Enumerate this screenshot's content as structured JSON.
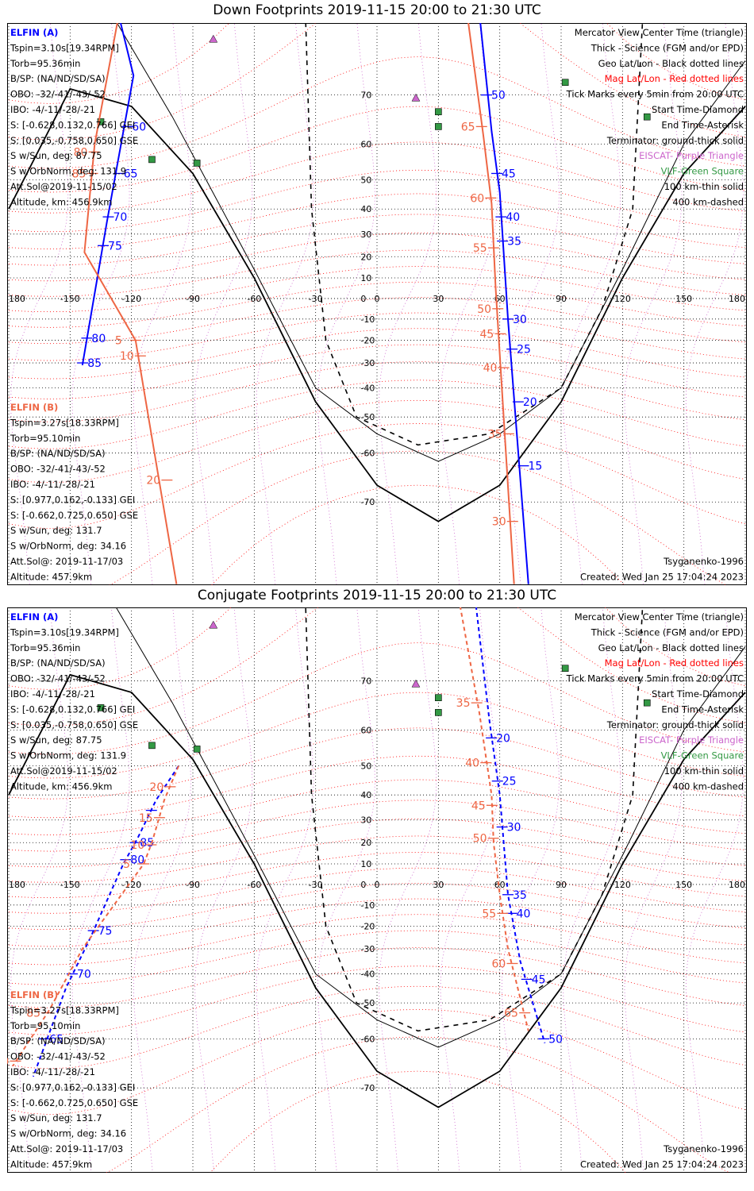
{
  "chart_data": [
    {
      "type": "map",
      "title": "Down Footprints 2019-11-15 20:00 to 21:30 UTC",
      "projection": "Mercator",
      "xlim": [
        -180,
        180
      ],
      "ylim": [
        -80,
        80
      ],
      "lon_ticks": [
        "180",
        "-150",
        "-120",
        "-90",
        "-60",
        "-30",
        "0",
        "30",
        "60",
        "90",
        "120",
        "150",
        "180"
      ],
      "lat_ticks": [
        "70",
        "60",
        "50",
        "40",
        "30",
        "20",
        "10",
        "0",
        "-10",
        "-20",
        "-30",
        "-40",
        "-50",
        "-60",
        "-70"
      ],
      "left_a": [
        "ELFIN (A)",
        "Tspin=3.10s[19.34RPM]",
        "Torb=95.36min",
        "B/SP: (NA/ND/SD/SA)",
        "OBO: -32/-41/-43/-52",
        "IBO: -4/-11/-28/-21",
        "S: [-0.628,0.132,0.766] GEI",
        "S: [0.035,-0.758,0.650] GSE",
        "S w/Sun, deg: 87.75",
        "S w/OrbNorm, deg: 131.9",
        "Att.Sol@2019-11-15/02",
        "Altitude, km: 456.9km"
      ],
      "left_b": [
        "ELFIN (B)",
        "Tspin=3.27s[18.33RPM]",
        "Torb=95.10min",
        "B/SP: (NA/ND/SD/SA)",
        "OBO: -32/-41/-43/-52",
        "IBO: -4/-11/-28/-21",
        "S: [0.977,0.162,-0.133] GEI",
        "S: [-0.662,0.725,0.650] GSE",
        "S w/Sun, deg: 131.7",
        "S w/OrbNorm, deg: 34.16",
        "Att.Sol@: 2019-11-17/03",
        "Altitude: 457.9km"
      ],
      "legend": [
        "Mercator View Center Time (triangle)",
        "Thick - Science (FGM and/or EPD)",
        "Geo Lat/Lon - Black dotted lines",
        "Mag Lat/Lon - Red dotted lines",
        "Tick Marks every 5min from 20:00 UTC",
        "Start Time-Diamond",
        "End Time-Asterisk",
        "Terminator: ground-thick solid",
        "EISCAT- Purple Triangle",
        "VLF-Green Square",
        "100 km-thin solid",
        "400 km-dashed"
      ],
      "footer_left": "",
      "footer_right": [
        "Tsyganenko-1996",
        "Created: Wed Jan 25 17:04:24 2023"
      ],
      "series": [
        {
          "name": "ELFIN (A)",
          "color": "#0000ff",
          "style": "solid",
          "points": [
            [
              -128,
              81
            ],
            [
              -119,
              73
            ],
            [
              -132,
              35
            ],
            [
              -144,
              -31
            ]
          ],
          "ticks": [
            {
              "lat": 64,
              "label": "60"
            },
            {
              "lat": 52,
              "label": "65"
            },
            {
              "lat": 37,
              "label": "70"
            },
            {
              "lat": 25,
              "label": "75"
            },
            {
              "lat": -19,
              "label": "80"
            },
            {
              "lat": -30,
              "label": "85"
            }
          ]
        },
        {
          "name": "ELFIN (B)",
          "color": "#ee6644",
          "style": "solid",
          "points": [
            [
              -126,
              80
            ],
            [
              -138,
              60
            ],
            [
              -143,
              22
            ],
            [
              -118,
              -20
            ],
            [
              -98,
              -80
            ]
          ],
          "ticks": [
            {
              "lat": 58,
              "label": "80"
            },
            {
              "lat": 52,
              "label": "85"
            },
            {
              "lat": -20,
              "label": "5"
            },
            {
              "lat": -27,
              "label": "10"
            },
            {
              "lat": -66,
              "label": "20"
            }
          ]
        },
        {
          "name": "ELFIN (A)",
          "color": "#0000ff",
          "style": "solid",
          "points": [
            [
              50,
              80
            ],
            [
              56,
              63
            ],
            [
              60,
              46
            ],
            [
              64,
              -10
            ],
            [
              74,
              -80
            ]
          ],
          "ticks": [
            {
              "lat": 70,
              "label": "50"
            },
            {
              "lat": 52,
              "label": "45"
            },
            {
              "lat": 37,
              "label": "40"
            },
            {
              "lat": 27,
              "label": "35"
            },
            {
              "lat": -10,
              "label": "30"
            },
            {
              "lat": -24,
              "label": "25"
            },
            {
              "lat": -45,
              "label": "20"
            },
            {
              "lat": -63,
              "label": "15"
            }
          ]
        },
        {
          "name": "ELFIN (B)",
          "color": "#ee6644",
          "style": "solid",
          "points": [
            [
              44,
              80
            ],
            [
              52,
              62
            ],
            [
              56,
              42
            ],
            [
              58,
              5
            ],
            [
              67,
              -80
            ]
          ],
          "ticks": [
            {
              "lat": 64,
              "label": "65"
            },
            {
              "lat": 44,
              "label": "60"
            },
            {
              "lat": 24,
              "label": "55"
            },
            {
              "lat": -5,
              "label": "50"
            },
            {
              "lat": -17,
              "label": "45"
            },
            {
              "lat": -32,
              "label": "40"
            },
            {
              "lat": -55,
              "label": "35"
            },
            {
              "lat": -73,
              "label": "30"
            }
          ]
        }
      ],
      "terminators": [
        {
          "style": "thick",
          "points": [
            [
              -180,
              40
            ],
            [
              -150,
              71
            ],
            [
              -120,
              68
            ],
            [
              -90,
              52
            ],
            [
              -60,
              10
            ],
            [
              -30,
              -45
            ],
            [
              0,
              -67
            ],
            [
              30,
              -73
            ],
            [
              60,
              -67
            ],
            [
              90,
              -45
            ],
            [
              120,
              10
            ],
            [
              150,
              52
            ],
            [
              180,
              68
            ]
          ]
        },
        {
          "style": "thin",
          "points": [
            [
              -130,
              80
            ],
            [
              -100,
              66
            ],
            [
              -60,
              14
            ],
            [
              -30,
              -40
            ],
            [
              0,
              -55
            ],
            [
              30,
              -62
            ],
            [
              60,
              -55
            ],
            [
              90,
              -40
            ],
            [
              120,
              14
            ],
            [
              150,
              60
            ],
            [
              180,
              75
            ]
          ]
        },
        {
          "style": "dashed",
          "points": [
            [
              -35,
              80
            ],
            [
              -32,
              40
            ],
            [
              -25,
              -20
            ],
            [
              -10,
              -50
            ],
            [
              20,
              -58
            ],
            [
              55,
              -55
            ],
            [
              90,
              -40
            ],
            [
              110,
              -5
            ],
            [
              125,
              40
            ],
            [
              130,
              80
            ]
          ]
        }
      ]
    },
    {
      "type": "map",
      "title": "Conjugate Footprints 2019-11-15 20:00 to 21:30 UTC",
      "projection": "Mercator",
      "xlim": [
        -180,
        180
      ],
      "ylim": [
        -80,
        80
      ],
      "lon_ticks": [
        "180",
        "-150",
        "-120",
        "-90",
        "-60",
        "-30",
        "0",
        "30",
        "60",
        "90",
        "120",
        "150",
        "180"
      ],
      "lat_ticks": [
        "70",
        "60",
        "50",
        "40",
        "30",
        "20",
        "10",
        "0",
        "-10",
        "-20",
        "-30",
        "-40",
        "-50",
        "-60",
        "-70"
      ],
      "left_a": [
        "ELFIN (A)",
        "Tspin=3.10s[19.34RPM]",
        "Torb=95.36min",
        "B/SP: (NA/ND/SD/SA)",
        "OBO: -32/-41/-43/-52",
        "IBO: -4/-11/-28/-21",
        "S: [-0.628,0.132,0.766] GEI",
        "S: [0.035,-0.758,0.650] GSE",
        "S w/Sun, deg: 87.75",
        "S w/OrbNorm, deg: 131.9",
        "Att.Sol@2019-11-15/02",
        "Altitude, km: 456.9km"
      ],
      "left_b": [
        "ELFIN (B)",
        "Tspin=3.27s[18.33RPM]",
        "Torb=95.10min",
        "B/SP: (NA/ND/SD/SA)",
        "OBO: -32/-41/-43/-52",
        "IBO: -4/-11/-28/-21",
        "S: [0.977,0.162,-0.133] GEI",
        "S: [-0.662,0.725,0.650] GSE",
        "S w/Sun, deg: 131.7",
        "S w/OrbNorm, deg: 34.16",
        "Att.Sol@: 2019-11-17/03",
        "Altitude: 457.9km"
      ],
      "legend": [
        "Mercator View Center Time (triangle)",
        "Thick - Science (FGM and/or EPD)",
        "Geo Lat/Lon - Black dotted lines",
        "Mag Lat/Lon - Red dotted lines",
        "Tick Marks every 5min from 20:00 UTC",
        "Start Time-Diamond",
        "End Time-Asterisk",
        "Terminator: ground-thick solid",
        "EISCAT- Purple Triangle",
        "VLF-Green Square",
        "100 km-thin solid",
        "400 km-dashed"
      ],
      "footer_left": "",
      "footer_right": [
        "Tsyganenko-1996",
        "Created: Wed Jan 25 17:04:24 2023"
      ],
      "series": [
        {
          "name": "ELFIN (A)",
          "color": "#0000ff",
          "style": "dashed",
          "points": [
            [
              -97,
              50
            ],
            [
              -108,
              38
            ],
            [
              -117,
              22
            ],
            [
              -124,
              10
            ],
            [
              -140,
              -25
            ],
            [
              -152,
              -45
            ],
            [
              -168,
              -68
            ]
          ],
          "ticks": [
            {
              "lat": 34,
              "label": ""
            },
            {
              "lat": 20,
              "label": "85"
            },
            {
              "lat": 12,
              "label": "80"
            },
            {
              "lat": -22,
              "label": "75"
            },
            {
              "lat": -40,
              "label": "70"
            },
            {
              "lat": -60,
              "label": "65"
            }
          ]
        },
        {
          "name": "ELFIN (B)",
          "color": "#ee6644",
          "style": "dashed",
          "points": [
            [
              -97,
              50
            ],
            [
              -104,
              38
            ],
            [
              -110,
              20
            ],
            [
              -114,
              10
            ],
            [
              -144,
              -30
            ],
            [
              -160,
              -52
            ],
            [
              -178,
              -66
            ]
          ],
          "ticks": [
            {
              "lat": 43,
              "label": "20"
            },
            {
              "lat": 31,
              "label": "15"
            },
            {
              "lat": 19,
              "label": "10"
            },
            {
              "lat": 10,
              "label": "5"
            },
            {
              "lat": -53,
              "label": "85"
            },
            {
              "lat": -65,
              "label": "90"
            }
          ]
        },
        {
          "name": "ELFIN (A)",
          "color": "#0000ff",
          "style": "dashed",
          "points": [
            [
              48,
              80
            ],
            [
              55,
              62
            ],
            [
              60,
              40
            ],
            [
              64,
              -5
            ],
            [
              70,
              -35
            ],
            [
              82,
              -61
            ]
          ],
          "ticks": [
            {
              "lat": 58,
              "label": "20"
            },
            {
              "lat": 45,
              "label": "25"
            },
            {
              "lat": 27,
              "label": "30"
            },
            {
              "lat": -5,
              "label": "35"
            },
            {
              "lat": -14,
              "label": "40"
            },
            {
              "lat": -42,
              "label": "45"
            },
            {
              "lat": -60,
              "label": "50"
            }
          ]
        },
        {
          "name": "ELFIN (B)",
          "color": "#ee6644",
          "style": "dashed",
          "points": [
            [
              40,
              80
            ],
            [
              50,
              64
            ],
            [
              56,
              40
            ],
            [
              57,
              20
            ],
            [
              60,
              -5
            ],
            [
              64,
              -30
            ],
            [
              74,
              -58
            ]
          ],
          "ticks": [
            {
              "lat": 66,
              "label": "35"
            },
            {
              "lat": 51,
              "label": "40"
            },
            {
              "lat": 36,
              "label": "45"
            },
            {
              "lat": 22,
              "label": "50"
            },
            {
              "lat": -14,
              "label": "55"
            },
            {
              "lat": -36,
              "label": "60"
            },
            {
              "lat": -53,
              "label": "65"
            }
          ]
        }
      ],
      "terminators": [
        {
          "style": "thick",
          "points": [
            [
              -180,
              40
            ],
            [
              -150,
              71
            ],
            [
              -120,
              68
            ],
            [
              -90,
              52
            ],
            [
              -60,
              10
            ],
            [
              -30,
              -45
            ],
            [
              0,
              -67
            ],
            [
              30,
              -73
            ],
            [
              60,
              -67
            ],
            [
              90,
              -45
            ],
            [
              120,
              10
            ],
            [
              150,
              52
            ],
            [
              180,
              68
            ]
          ]
        },
        {
          "style": "thin",
          "points": [
            [
              -130,
              80
            ],
            [
              -100,
              66
            ],
            [
              -60,
              14
            ],
            [
              -30,
              -40
            ],
            [
              0,
              -55
            ],
            [
              30,
              -62
            ],
            [
              60,
              -55
            ],
            [
              90,
              -40
            ],
            [
              120,
              14
            ],
            [
              150,
              60
            ],
            [
              180,
              75
            ]
          ]
        },
        {
          "style": "dashed",
          "points": [
            [
              -35,
              80
            ],
            [
              -32,
              40
            ],
            [
              -25,
              -20
            ],
            [
              -10,
              -50
            ],
            [
              20,
              -58
            ],
            [
              55,
              -55
            ],
            [
              90,
              -40
            ],
            [
              110,
              -5
            ],
            [
              125,
              40
            ],
            [
              130,
              80
            ]
          ]
        }
      ]
    }
  ],
  "colors": {
    "elfin_a": "#0000ff",
    "elfin_b": "#ee6644",
    "eiscat": "#cc66cc",
    "vlf": "#339944",
    "mag_grid": "#ff0000",
    "terminator": "#000000"
  },
  "markers": {
    "eiscat": [
      [
        19,
        69.5
      ],
      [
        -80,
        77.5
      ]
    ],
    "vlf": [
      [
        -135,
        65
      ],
      [
        -110,
        56
      ],
      [
        -88,
        55
      ],
      [
        30,
        67
      ],
      [
        30,
        64
      ],
      [
        92,
        72
      ],
      [
        132,
        66
      ]
    ]
  }
}
